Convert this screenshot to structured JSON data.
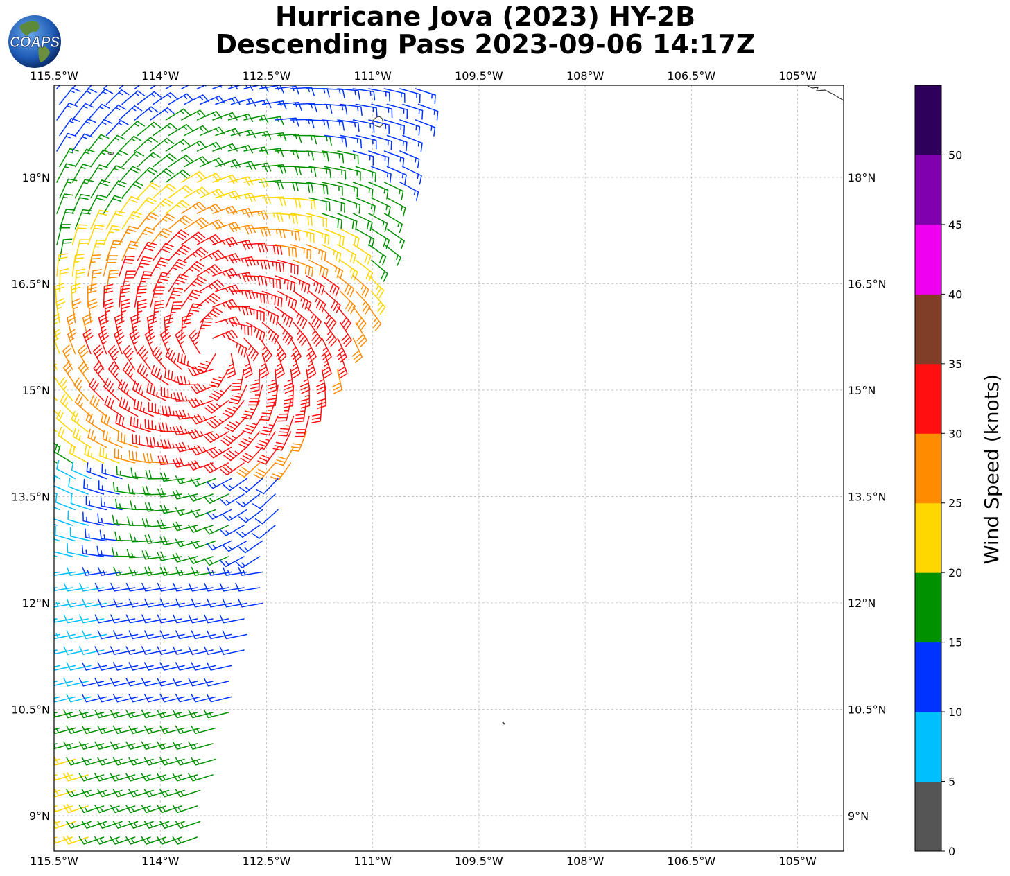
{
  "title": {
    "line1": "Hurricane Jova (2023) HY-2B",
    "line2": "Descending Pass 2023-09-06 14:17Z"
  },
  "logo": {
    "text": "COAPS",
    "icon": "globe-icon"
  },
  "map": {
    "lon_range": [
      -115.5,
      -104.35
    ],
    "lat_range": [
      8.5,
      19.3
    ],
    "grid": true,
    "lon_ticks": [
      "115.5°W",
      "114°W",
      "112.5°W",
      "111°W",
      "109.5°W",
      "108°W",
      "106.5°W",
      "105°W"
    ],
    "lat_ticks": [
      "18°N",
      "16.5°N",
      "15°N",
      "13.5°N",
      "12°N",
      "10.5°N",
      "9°N"
    ],
    "lon_values": [
      -115.5,
      -114,
      -112.5,
      -111,
      -109.5,
      -108,
      -106.5,
      -105
    ],
    "lat_values": [
      18,
      16.5,
      15,
      13.5,
      12,
      10.5,
      9
    ]
  },
  "colorbar": {
    "label": "Wind Speed (knots)",
    "ticks": [
      "0",
      "5",
      "10",
      "15",
      "20",
      "25",
      "30",
      "35",
      "40",
      "45",
      "50"
    ],
    "bins": [
      {
        "from": 0,
        "to": 5,
        "color": "#555555"
      },
      {
        "from": 5,
        "to": 10,
        "color": "#00bfff"
      },
      {
        "from": 10,
        "to": 15,
        "color": "#0033ff"
      },
      {
        "from": 15,
        "to": 20,
        "color": "#009100"
      },
      {
        "from": 20,
        "to": 25,
        "color": "#ffd700"
      },
      {
        "from": 25,
        "to": 30,
        "color": "#ff8c00"
      },
      {
        "from": 30,
        "to": 35,
        "color": "#ff0f0f"
      },
      {
        "from": 35,
        "to": 40,
        "color": "#803d28"
      },
      {
        "from": 40,
        "to": 45,
        "color": "#f000f0"
      },
      {
        "from": 45,
        "to": 50,
        "color": "#8000b0"
      },
      {
        "from": 50,
        "to": 55,
        "color": "#2e005c"
      }
    ]
  },
  "chart_data": {
    "type": "wind-barbs",
    "center": {
      "lon": -113.25,
      "lat": 15.55
    },
    "speed_units": "knots",
    "samples": [
      {
        "lon": -115.4,
        "lat": 19.0,
        "speed": 16
      },
      {
        "lon": -114.0,
        "lat": 17.5,
        "speed": 17
      },
      {
        "lon": -113.1,
        "lat": 16.7,
        "speed": 27
      },
      {
        "lon": -113.25,
        "lat": 15.55,
        "speed": 32
      },
      {
        "lon": -112.1,
        "lat": 15.6,
        "speed": 23
      },
      {
        "lon": -111.8,
        "lat": 16.4,
        "speed": 27
      },
      {
        "lon": -114.1,
        "lat": 13.3,
        "speed": 21
      },
      {
        "lon": -115.3,
        "lat": 12.8,
        "speed": 7
      },
      {
        "lon": -113.0,
        "lat": 12.1,
        "speed": 12
      },
      {
        "lon": -115.3,
        "lat": 11.4,
        "speed": 8
      },
      {
        "lon": -114.5,
        "lat": 10.2,
        "speed": 16
      },
      {
        "lon": -115.3,
        "lat": 9.6,
        "speed": 23
      },
      {
        "lon": -113.8,
        "lat": 8.8,
        "speed": 22
      }
    ]
  }
}
